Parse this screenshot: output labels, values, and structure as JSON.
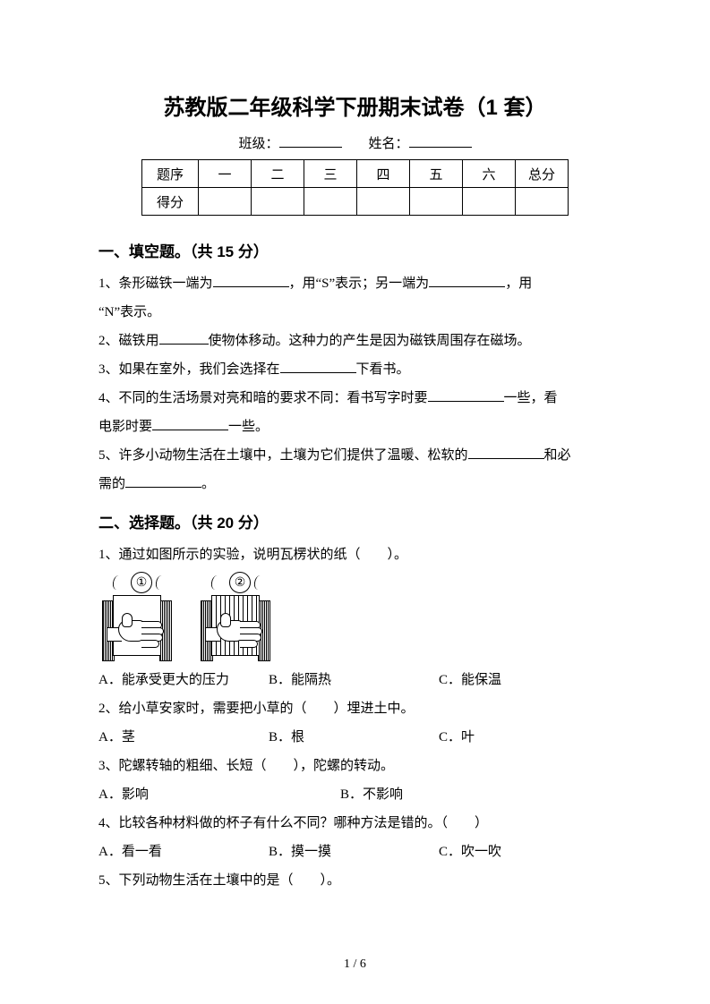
{
  "title": "苏教版二年级科学下册期末试卷（1 套）",
  "classline": {
    "class_label": "班级：",
    "name_label": "姓名："
  },
  "score_table": {
    "header": [
      "题序",
      "一",
      "二",
      "三",
      "四",
      "五",
      "六",
      "总分"
    ],
    "score_label": "得分"
  },
  "section1": {
    "head": "一、填空题。（共 15 分）",
    "q1a": "1、条形磁铁一端为",
    "q1b": "，用“S”表示；另一端为",
    "q1c": "，用",
    "q1d": "“N”表示。",
    "q2a": "2、磁铁用",
    "q2b": "使物体移动。这种力的产生是因为磁铁周围存在磁场。",
    "q3a": "3、如果在室外，我们会选择在",
    "q3b": "下看书。",
    "q4a": "4、不同的生活场景对亮和暗的要求不同：看书写字时要",
    "q4b": "一些，看",
    "q4c": "电影时要",
    "q4d": "一些。",
    "q5a": "5、许多小动物生活在土壤中，土壤为它们提供了温暖、松软的",
    "q5b": "和必",
    "q5c": "需的",
    "q5d": "。"
  },
  "section2": {
    "head": "二、选择题。（共 20 分）",
    "q1": "1、通过如图所示的实验，说明瓦楞状的纸（　　）。",
    "q1_opts": {
      "A": "A．能承受更大的压力",
      "B": "B．能隔热",
      "C": "C．能保温"
    },
    "q2": "2、给小草安家时，需要把小草的（　　）埋进土中。",
    "q2_opts": {
      "A": "A．茎",
      "B": "B．根",
      "C": "C．叶"
    },
    "q3": "3、陀螺转轴的粗细、长短（　　），陀螺的转动。",
    "q3_opts": {
      "A": "A．影响",
      "B": "B．不影响"
    },
    "q4": "4、比较各种材料做的杯子有什么不同？哪种方法是错的。（　　）",
    "q4_opts": {
      "A": "A．看一看",
      "B": "B．摸一摸",
      "C": "C．吹一吹"
    },
    "q5": "5、下列动物生活在土壤中的是（　　）。"
  },
  "figures": {
    "num1": "①",
    "num2": "②"
  },
  "pagenum": "1 / 6"
}
